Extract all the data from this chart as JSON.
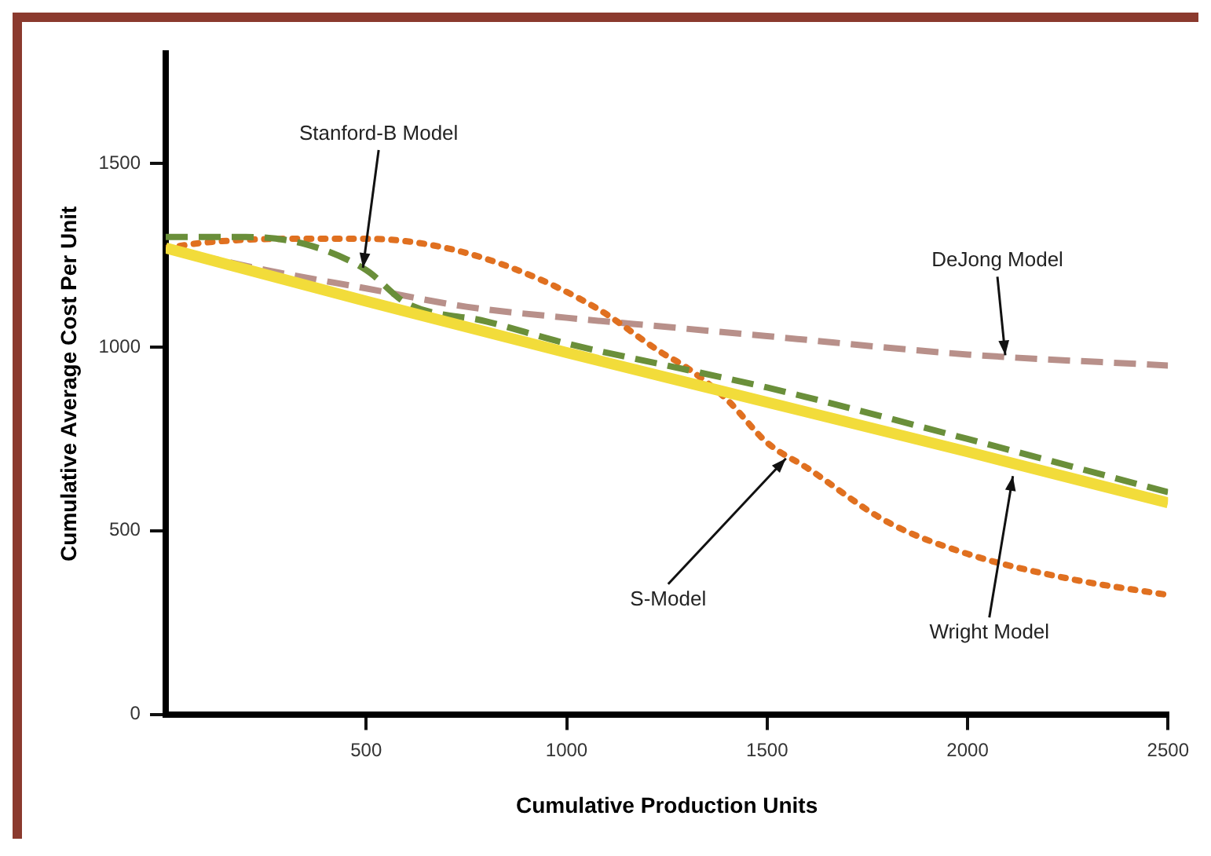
{
  "chart_data": {
    "type": "line",
    "xlabel": "Cumulative Production Units",
    "ylabel": "Cumulative Average Cost Per Unit",
    "xlim": [
      0,
      2500
    ],
    "ylim": [
      0,
      1800
    ],
    "xticks": [
      500,
      1000,
      1500,
      2000,
      2500
    ],
    "yticks": [
      0,
      500,
      1000,
      1500
    ],
    "grid": false,
    "legend": false,
    "marker": "none",
    "series": [
      {
        "color": "#f2dc3a",
        "line_style": "solid",
        "x": [
          0,
          500,
          1000,
          1500,
          2000,
          2500
        ],
        "values": [
          1270,
          1125,
          985,
          850,
          715,
          576
        ]
      },
      {
        "color": "#6a8f3a",
        "line_style": "dashed",
        "x": [
          0,
          200,
          350,
          500,
          600,
          800,
          1000,
          1250,
          1500,
          2000,
          2500
        ],
        "values": [
          1300,
          1300,
          1280,
          1210,
          1120,
          1070,
          1010,
          950,
          890,
          750,
          605
        ]
      },
      {
        "color": "#e07020",
        "line_style": "dotted",
        "x": [
          0,
          100,
          300,
          500,
          700,
          900,
          1078,
          1234,
          1300,
          1400,
          1500,
          1600,
          1800,
          2000,
          2250,
          2500
        ],
        "values": [
          1270,
          1285,
          1295,
          1295,
          1270,
          1200,
          1104,
          987,
          944,
          857,
          740,
          671,
          524,
          437,
          370,
          325
        ]
      },
      {
        "color": "#b8908a",
        "line_style": "dashed",
        "x": [
          0,
          250,
          500,
          750,
          1000,
          1250,
          1500,
          2000,
          2500
        ],
        "values": [
          1270,
          1210,
          1160,
          1110,
          1080,
          1055,
          1030,
          980,
          950
        ]
      }
    ],
    "annotations": [
      {
        "text": "Stanford-B Model",
        "x": 492,
        "y": 1216
      },
      {
        "text": "DeJong Model",
        "x": 2094,
        "y": 978
      },
      {
        "text": "S-Model",
        "x": 1547,
        "y": 697
      },
      {
        "text": "Wright Model",
        "x": 2113,
        "y": 649
      }
    ]
  }
}
